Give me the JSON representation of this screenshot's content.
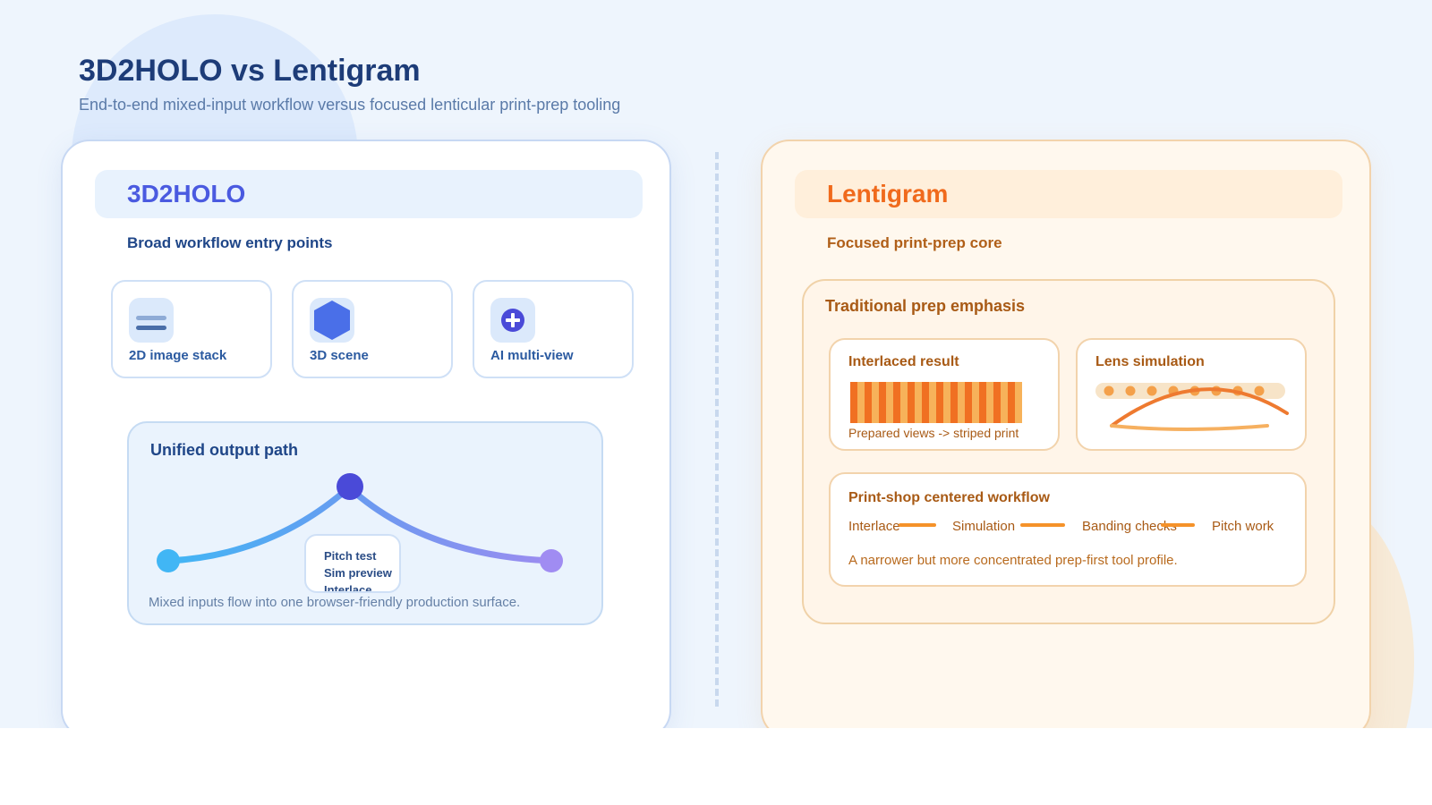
{
  "page": {
    "title": "3D2HOLO vs Lentigram",
    "subtitle": "End-to-end mixed-input workflow versus focused lenticular print-prep tooling"
  },
  "left": {
    "header": "3D2HOLO",
    "caption": "Broad workflow entry points",
    "entries": [
      {
        "label": "2D image stack",
        "icon": "image-stack-icon"
      },
      {
        "label": "3D scene",
        "icon": "hexagon-scene-icon"
      },
      {
        "label": "AI multi-view",
        "icon": "plus-circle-icon"
      }
    ],
    "output": {
      "title": "Unified output path",
      "steps": [
        "Pitch test",
        "Sim preview",
        "Interlace"
      ],
      "note": "Mixed inputs flow into one browser-friendly production surface."
    }
  },
  "right": {
    "header": "Lentigram",
    "caption": "Focused print-prep core",
    "prep": {
      "title": "Traditional prep emphasis",
      "interlaced": {
        "title": "Interlaced result",
        "caption": "Prepared views -> striped print"
      },
      "lens": {
        "title": "Lens simulation"
      },
      "workflow": {
        "title": "Print-shop centered workflow",
        "steps": [
          "Interlace",
          "Simulation",
          "Banding checks",
          "Pitch work"
        ],
        "note": "A narrower but more concentrated prep-first tool profile."
      }
    }
  },
  "colors": {
    "left_accent": "#4a5ae0",
    "right_accent": "#f06a1c",
    "stripe_dark": "#f07022",
    "stripe_light": "#f7b25a"
  }
}
